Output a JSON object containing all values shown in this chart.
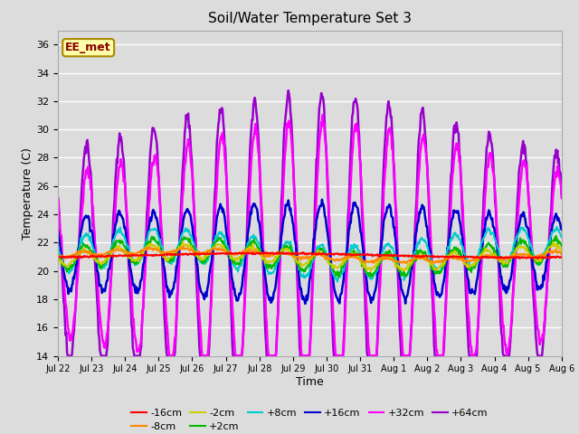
{
  "title": "Soil/Water Temperature Set 3",
  "xlabel": "Time",
  "ylabel": "Temperature (C)",
  "ylim": [
    14,
    37
  ],
  "yticks": [
    14,
    16,
    18,
    20,
    22,
    24,
    26,
    28,
    30,
    32,
    34,
    36
  ],
  "background_color": "#dcdcdc",
  "annotation_text": "EE_met",
  "annotation_bg": "#ffffaa",
  "annotation_border": "#aa8800",
  "annotation_text_color": "#880000",
  "series_order": [
    "-16cm",
    "-8cm",
    "-2cm",
    "+2cm",
    "+8cm",
    "+16cm",
    "+32cm",
    "+64cm"
  ],
  "series": {
    "-16cm": {
      "color": "#ff0000",
      "lw": 1.5
    },
    "-8cm": {
      "color": "#ff8800",
      "lw": 1.5
    },
    "-2cm": {
      "color": "#cccc00",
      "lw": 1.5
    },
    "+2cm": {
      "color": "#00bb00",
      "lw": 1.5
    },
    "+8cm": {
      "color": "#00cccc",
      "lw": 1.5
    },
    "+16cm": {
      "color": "#0000cc",
      "lw": 1.8
    },
    "+32cm": {
      "color": "#ff00ff",
      "lw": 1.8
    },
    "+64cm": {
      "color": "#9900cc",
      "lw": 1.8
    }
  },
  "xtick_labels": [
    "Jul 22",
    "Jul 23",
    "Jul 24",
    "Jul 25",
    "Jul 26",
    "Jul 27",
    "Jul 28",
    "Jul 29",
    "Jul 30",
    "Jul 31",
    "Aug 1",
    "Aug 2",
    "Aug 3",
    "Aug 4",
    "Aug 5",
    "Aug 6"
  ],
  "legend_row1": [
    "-16cm",
    "-8cm",
    "-2cm",
    "+2cm",
    "+8cm",
    "+16cm"
  ],
  "legend_row2": [
    "+32cm",
    "+64cm"
  ],
  "legend_fontsize": 8
}
